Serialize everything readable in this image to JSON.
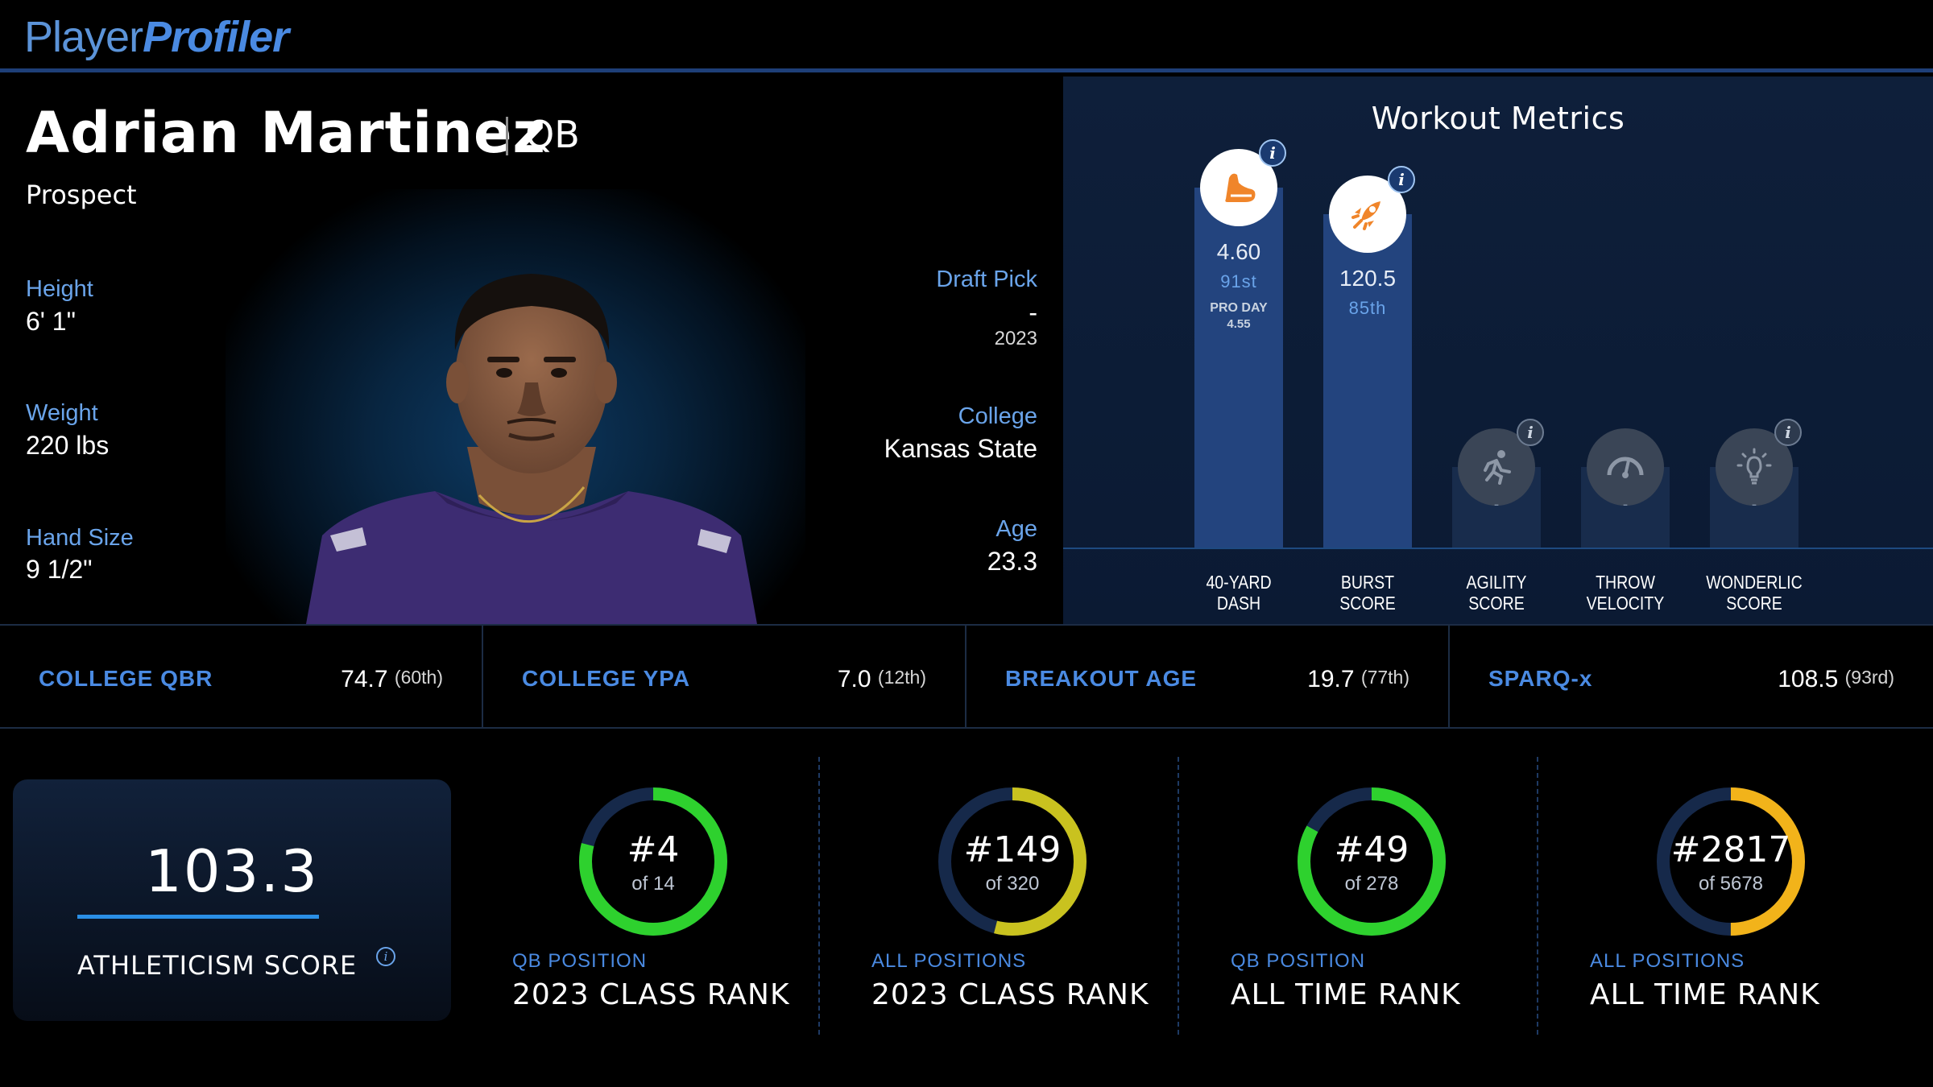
{
  "brand": {
    "part1": "Player",
    "part2": "Profiler"
  },
  "player": {
    "name": "Adrian Martinez",
    "position": "QB",
    "status": "Prospect",
    "height_label": "Height",
    "height": "6' 1\"",
    "weight_label": "Weight",
    "weight": "220 lbs",
    "hand_label": "Hand Size",
    "hand": "9 1/2\"",
    "draft_label": "Draft Pick",
    "draft": "-",
    "draft_year": "2023",
    "college_label": "College",
    "college": "Kansas State",
    "age_label": "Age",
    "age": "23.3"
  },
  "workout": {
    "title": "Workout Metrics",
    "metrics": [
      {
        "label1": "40-YARD",
        "label2": "DASH",
        "value": "4.60",
        "percentile": "91st",
        "sub1": "PRO DAY",
        "sub2": "4.55",
        "icon": "shoe-icon",
        "has_data": true,
        "level": 0.95
      },
      {
        "label1": "BURST",
        "label2": "SCORE",
        "value": "120.5",
        "percentile": "85th",
        "icon": "rocket-icon",
        "has_data": true,
        "level": 0.88
      },
      {
        "label1": "AGILITY",
        "label2": "SCORE",
        "value": "-",
        "icon": "runner-icon",
        "has_data": false
      },
      {
        "label1": "THROW",
        "label2": "VELOCITY",
        "value": "-",
        "icon": "speedometer-icon",
        "has_data": false
      },
      {
        "label1": "WONDERLIC",
        "label2": "SCORE",
        "value": "-",
        "icon": "lightbulb-icon",
        "has_data": false
      }
    ]
  },
  "stats": [
    {
      "label": "COLLEGE QBR",
      "value": "74.7",
      "pct": "(60th)"
    },
    {
      "label": "COLLEGE YPA",
      "value": "7.0",
      "pct": "(12th)"
    },
    {
      "label": "BREAKOUT AGE",
      "value": "19.7",
      "pct": "(77th)"
    },
    {
      "label": "SPARQ-x",
      "value": "108.5",
      "pct": "(93rd)"
    }
  ],
  "athleticism": {
    "score": "103.3",
    "label": "ATHLETICISM SCORE"
  },
  "ranks": [
    {
      "rank": "#4",
      "of": "of 14",
      "scope": "QB POSITION",
      "title": "2023 CLASS RANK",
      "fraction": 0.79,
      "color": "#2ed12e"
    },
    {
      "rank": "#149",
      "of": "of 320",
      "scope": "ALL POSITIONS",
      "title": "2023 CLASS RANK",
      "fraction": 0.54,
      "color": "#c9c21f"
    },
    {
      "rank": "#49",
      "of": "of 278",
      "scope": "QB POSITION",
      "title": "ALL TIME RANK",
      "fraction": 0.83,
      "color": "#2ed12e"
    },
    {
      "rank": "#2817",
      "of": "of 5678",
      "scope": "ALL POSITIONS",
      "title": "ALL TIME RANK",
      "fraction": 0.5,
      "color": "#f2b31a"
    }
  ],
  "colors": {
    "accent": "#4a8ae2",
    "header_rule": "#1e3f78",
    "bar": "#23447e"
  }
}
